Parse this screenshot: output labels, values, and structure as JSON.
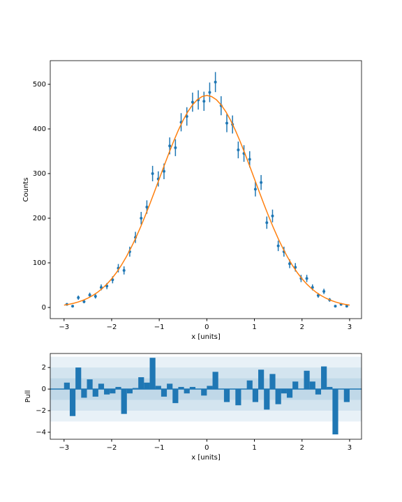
{
  "chart_data": [
    {
      "type": "errorbar",
      "xlabel": "x [units]",
      "ylabel": "Counts",
      "xlim": [
        -3.29,
        3.25
      ],
      "ylim": [
        -25,
        553
      ],
      "xticks": [
        {
          "value": -3,
          "label": "−3"
        },
        {
          "value": -2,
          "label": "−2"
        },
        {
          "value": -1,
          "label": "−1"
        },
        0,
        1,
        2,
        3
      ],
      "yticks": [
        0,
        100,
        200,
        300,
        400,
        500
      ],
      "series": [
        {
          "kind": "points",
          "color": "#1f77b4",
          "x": [
            -2.94,
            -2.82,
            -2.7,
            -2.58,
            -2.46,
            -2.34,
            -2.22,
            -2.1,
            -1.98,
            -1.86,
            -1.74,
            -1.62,
            -1.5,
            -1.38,
            -1.26,
            -1.14,
            -1.02,
            -0.9,
            -0.78,
            -0.66,
            -0.54,
            -0.42,
            -0.3,
            -0.18,
            -0.06,
            0.06,
            0.18,
            0.3,
            0.42,
            0.54,
            0.66,
            0.78,
            0.9,
            1.02,
            1.14,
            1.26,
            1.38,
            1.5,
            1.62,
            1.74,
            1.86,
            1.98,
            2.1,
            2.22,
            2.34,
            2.46,
            2.58,
            2.7,
            2.82,
            2.94
          ],
          "values": [
            7,
            3,
            22,
            13,
            28,
            25,
            45,
            48,
            62,
            88,
            83,
            125,
            157,
            200,
            225,
            300,
            288,
            305,
            362,
            358,
            415,
            428,
            460,
            465,
            462,
            482,
            505,
            452,
            413,
            410,
            353,
            345,
            332,
            265,
            280,
            190,
            205,
            138,
            125,
            98,
            90,
            65,
            65,
            45,
            27,
            36,
            17,
            3,
            7,
            3
          ],
          "errors": [
            2.6,
            1.7,
            4.7,
            3.6,
            5.3,
            5,
            6.7,
            6.9,
            7.9,
            9.4,
            9.1,
            11.2,
            12.5,
            14.1,
            15,
            17.3,
            17,
            17.5,
            19,
            18.9,
            20.4,
            20.7,
            21.4,
            21.6,
            21.5,
            22,
            22.5,
            21.3,
            20.3,
            20.2,
            18.8,
            18.6,
            18.2,
            16.3,
            16.7,
            13.8,
            14.3,
            11.7,
            11.2,
            9.9,
            9.5,
            8.1,
            8.1,
            6.7,
            5.2,
            6,
            4.1,
            1.7,
            2.6,
            1.7
          ]
        },
        {
          "kind": "line",
          "color": "#ff7f0e",
          "x": [
            -3.0,
            -2.9,
            -2.8,
            -2.7,
            -2.6,
            -2.5,
            -2.4,
            -2.3,
            -2.2,
            -2.1,
            -2.0,
            -1.9,
            -1.8,
            -1.7,
            -1.6,
            -1.5,
            -1.4,
            -1.3,
            -1.2,
            -1.1,
            -1.0,
            -0.9,
            -0.8,
            -0.7,
            -0.6,
            -0.5,
            -0.4,
            -0.3,
            -0.2,
            -0.1,
            0,
            0.1,
            0.2,
            0.3,
            0.4,
            0.5,
            0.6,
            0.7,
            0.8,
            0.9,
            1.0,
            1.1,
            1.2,
            1.3,
            1.4,
            1.5,
            1.6,
            1.7,
            1.8,
            1.9,
            2.0,
            2.1,
            2.2,
            2.3,
            2.4,
            2.5,
            2.6,
            2.7,
            2.8,
            2.9,
            3.0
          ],
          "values": [
            5.3,
            7.1,
            9.4,
            12.4,
            16.2,
            20.9,
            26.7,
            33.7,
            42.2,
            52.4,
            64.3,
            78.1,
            94.0,
            112.0,
            132.1,
            154.2,
            178.3,
            204.1,
            231.2,
            259.4,
            288.1,
            316.8,
            344.9,
            371.8,
            396.8,
            419.2,
            438.5,
            454.1,
            465.6,
            472.6,
            475,
            472.6,
            465.6,
            454.1,
            438.5,
            419.2,
            396.8,
            371.8,
            344.9,
            316.8,
            288.1,
            259.4,
            231.2,
            204.1,
            178.3,
            154.2,
            132.1,
            112.0,
            94.0,
            78.1,
            64.3,
            52.4,
            42.2,
            33.7,
            26.7,
            20.9,
            16.2,
            12.4,
            9.4,
            7.1,
            5.3
          ]
        }
      ]
    },
    {
      "type": "histogram",
      "xlabel": "x [units]",
      "ylabel": "Pull",
      "color": "#1f77b4",
      "xlim": [
        -3.29,
        3.25
      ],
      "ylim": [
        -4.65,
        3.3
      ],
      "xticks": [
        {
          "value": -3,
          "label": "−3"
        },
        {
          "value": -2,
          "label": "−2"
        },
        {
          "value": -1,
          "label": "−1"
        },
        0,
        1,
        2,
        3
      ],
      "yticks": [
        {
          "value": -4,
          "label": "−4"
        },
        {
          "value": -2,
          "label": "−2"
        },
        0,
        2
      ],
      "bands": [
        3,
        2,
        1
      ],
      "bins": [
        -3.0,
        -2.88,
        -2.76,
        -2.64,
        -2.52,
        -2.4,
        -2.28,
        -2.16,
        -2.04,
        -1.92,
        -1.8,
        -1.68,
        -1.56,
        -1.44,
        -1.32,
        -1.2,
        -1.08,
        -0.96,
        -0.84,
        -0.72,
        -0.6,
        -0.48,
        -0.36,
        -0.24,
        -0.12,
        0,
        0.12,
        0.24,
        0.36,
        0.48,
        0.6,
        0.72,
        0.84,
        0.96,
        1.08,
        1.2,
        1.32,
        1.44,
        1.56,
        1.68,
        1.8,
        1.92,
        2.04,
        2.16,
        2.28,
        2.4,
        2.52,
        2.64,
        2.76,
        2.88,
        3.0
      ],
      "values": [
        0.6,
        -2.5,
        2.0,
        -0.8,
        0.9,
        -0.7,
        0.5,
        -0.5,
        -0.4,
        0.2,
        -2.3,
        -0.4,
        0.1,
        1.1,
        0.6,
        2.9,
        0.3,
        -0.7,
        0.5,
        -1.3,
        0.2,
        -0.4,
        0.2,
        0,
        -0.6,
        0.3,
        1.6,
        0,
        -1.2,
        0,
        -1.5,
        0,
        0.8,
        -1.2,
        1.8,
        -1.9,
        1.4,
        -1.4,
        -0.4,
        -0.8,
        0.7,
        0,
        1.7,
        0.7,
        -0.5,
        2.1,
        0.2,
        -4.2,
        0,
        -1.2
      ]
    }
  ]
}
